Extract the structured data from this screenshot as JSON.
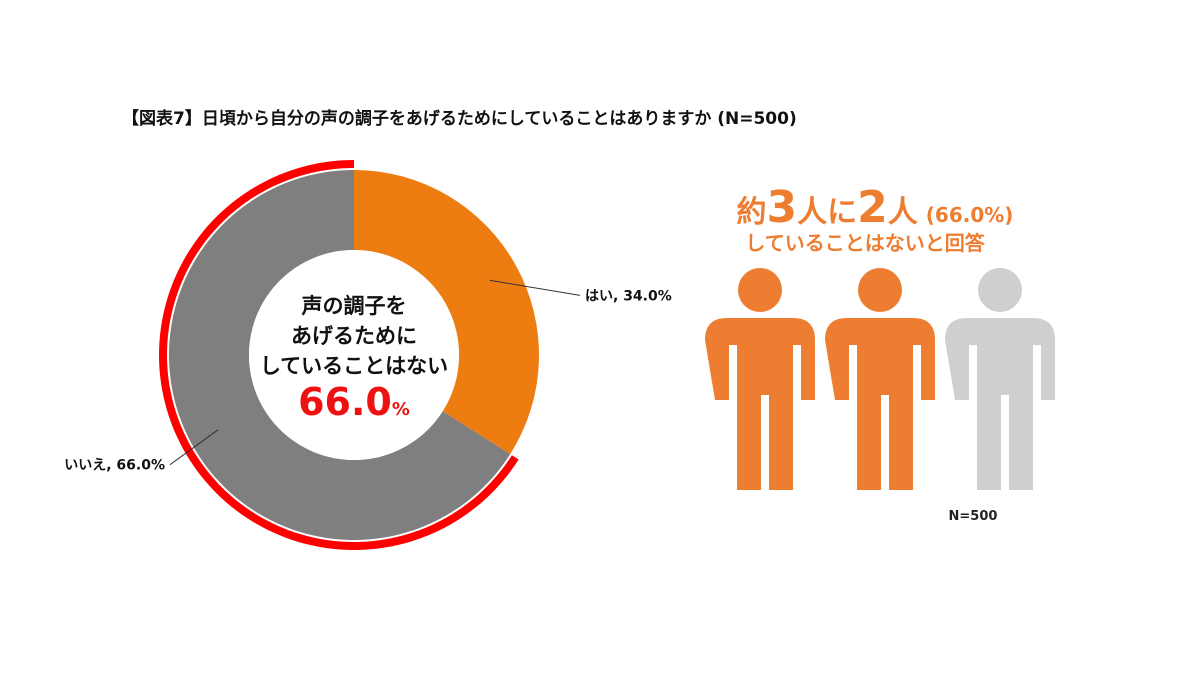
{
  "chart_data": {
    "type": "donut",
    "title": "【図表7】日頃から自分の声の調子をあげるためにしていることはありますか (N=500)",
    "categories": [
      "はい",
      "いいえ"
    ],
    "values": [
      34.0,
      66.0
    ],
    "value_labels": [
      "34.0%",
      "66.0%"
    ],
    "slice_labels": [
      "はい, 34.0%",
      "いいえ, 66.0%"
    ],
    "colors": [
      "#ed7d10",
      "#7f7f7f"
    ],
    "highlight": 1,
    "highlight_color": "#ff0000",
    "center_lines": [
      "声の調子を",
      "あげるために",
      "していることはない"
    ],
    "center_value": "66.0",
    "center_unit": "%",
    "headline": [
      "約",
      "3",
      "人に",
      "2",
      "人"
    ],
    "headline_note": "(66.0%)",
    "subheadline": "していることはないと回答",
    "icons": {
      "total": 3,
      "highlighted": 2,
      "colors": [
        "#ed7d31",
        "#d0cece"
      ]
    },
    "sample_note": "N=500"
  }
}
